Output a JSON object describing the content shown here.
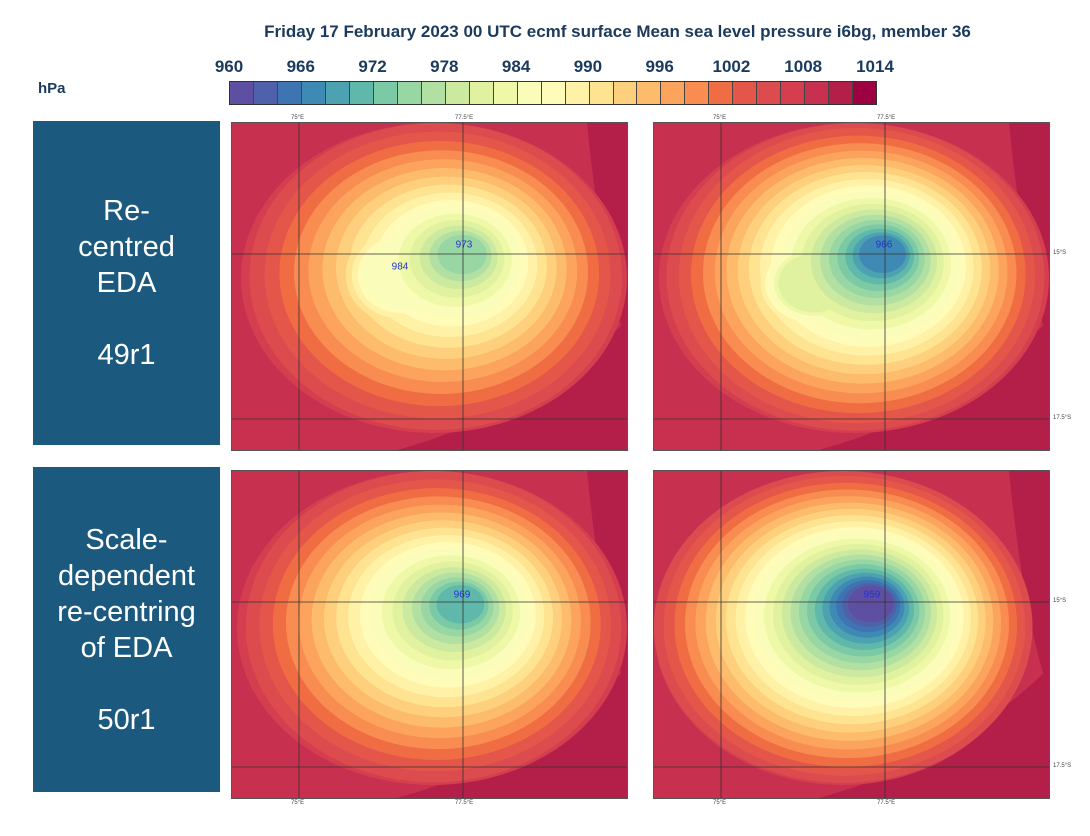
{
  "title": "Friday 17 February 2023 00 UTC ecmf surface Mean sea level pressure i6bg, member 36",
  "colorbar": {
    "unit": "hPa",
    "ticks": [
      "960",
      "966",
      "972",
      "978",
      "984",
      "990",
      "996",
      "1002",
      "1008",
      "1014"
    ],
    "min": 960,
    "max": 1014,
    "step": 2,
    "colors": [
      "#5e4fa2",
      "#4f61aa",
      "#3f74b2",
      "#3f8ab5",
      "#4da2b1",
      "#5fb8aa",
      "#7ccaa5",
      "#98d6a4",
      "#b2e0a2",
      "#cbe99f",
      "#e0f2a0",
      "#eff8a6",
      "#fafcb9",
      "#fffbb8",
      "#fff1a6",
      "#fee390",
      "#fed07e",
      "#fdbb6c",
      "#fca35e",
      "#f88c51",
      "#f06d44",
      "#e4564a",
      "#dc4b4e",
      "#d53e4f",
      "#c7304f",
      "#b41f49",
      "#9e0142"
    ]
  },
  "rows": [
    {
      "label_lines": [
        "Re-",
        "centred",
        "EDA",
        "",
        "49r1"
      ]
    },
    {
      "label_lines": [
        "Scale-",
        "dependent",
        "re-centring",
        "of EDA",
        "",
        "50r1"
      ]
    }
  ],
  "axes": {
    "lon": [
      "75°E",
      "77.5°E"
    ],
    "lat": [
      "15°S",
      "17.5°S"
    ]
  },
  "panels": [
    {
      "minima": [
        "973",
        "984"
      ],
      "min_value": 973
    },
    {
      "minima": [
        "966"
      ],
      "min_value": 966
    },
    {
      "minima": [
        "969"
      ],
      "min_value": 969
    },
    {
      "minima": [
        "959"
      ],
      "min_value": 959
    }
  ]
}
